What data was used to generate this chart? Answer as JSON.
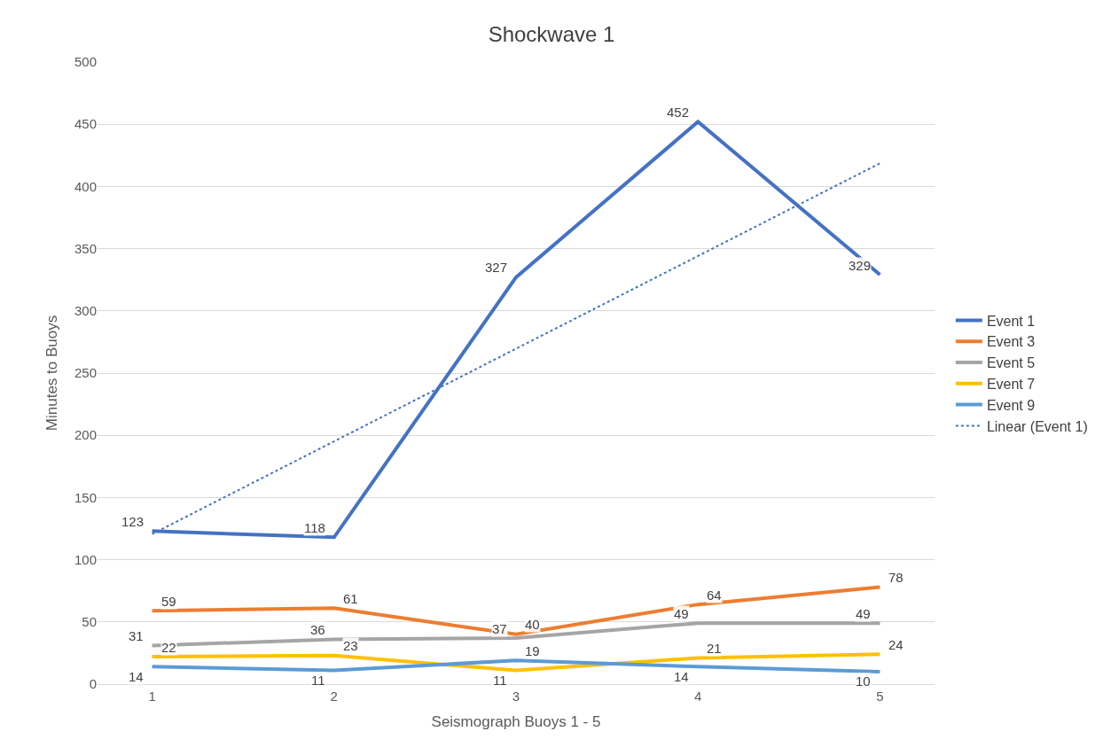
{
  "chart_data": {
    "type": "line",
    "title": "Shockwave 1",
    "xlabel": "Seismograph Buoys 1 - 5",
    "ylabel": "Minutes to Buoys",
    "categories": [
      "1",
      "2",
      "3",
      "4",
      "5"
    ],
    "series": [
      {
        "name": "Event 1",
        "color": "#4472c4",
        "values": [
          123,
          118,
          327,
          452,
          329
        ]
      },
      {
        "name": "Event 3",
        "color": "#ed7d31",
        "values": [
          59,
          61,
          40,
          64,
          78
        ]
      },
      {
        "name": "Event 5",
        "color": "#a5a5a5",
        "values": [
          31,
          36,
          37,
          49,
          49
        ]
      },
      {
        "name": "Event 7",
        "color": "#ffc000",
        "values": [
          22,
          23,
          11,
          21,
          24
        ]
      },
      {
        "name": "Event 9",
        "color": "#5b9bd5",
        "values": [
          14,
          11,
          19,
          14,
          10
        ]
      },
      {
        "name": "Linear (Event 1)",
        "color": "#4472c4",
        "x": [
          "1",
          "5"
        ],
        "values": [
          120.6,
          418.6
        ],
        "line_style": "dotted",
        "data_labels": false
      }
    ],
    "ylim": [
      0,
      500
    ],
    "yticks": [
      0,
      50,
      100,
      150,
      200,
      250,
      300,
      350,
      400,
      450,
      500
    ],
    "grid": "y",
    "legend": "right",
    "data_labels": true,
    "marker": "none",
    "line_style": "solid"
  }
}
